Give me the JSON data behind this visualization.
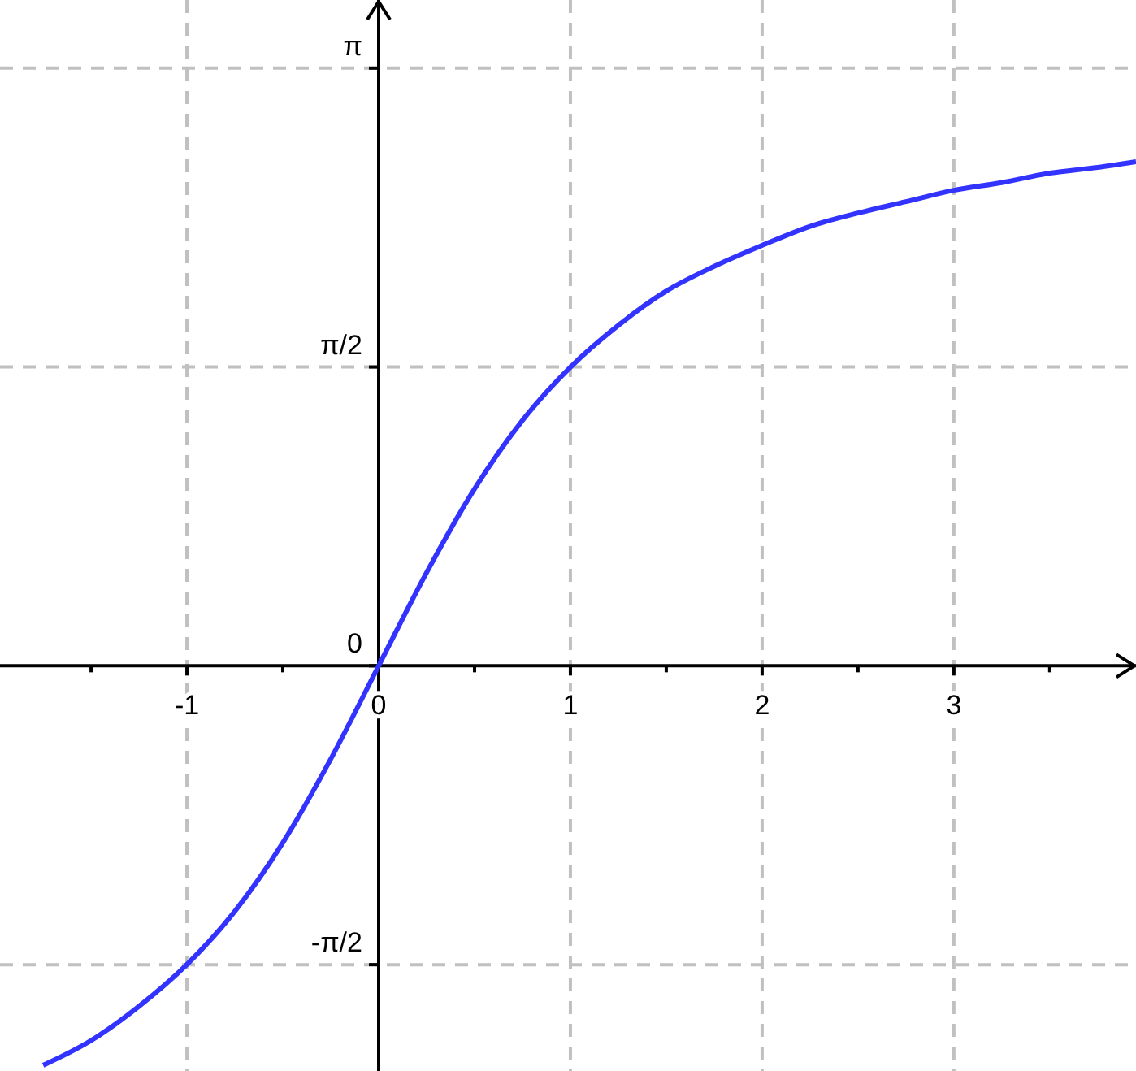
{
  "chart_data": {
    "type": "line",
    "xlim": [
      -1.975,
      3.95
    ],
    "ylim": [
      -2.13,
      3.5
    ],
    "xticks": [
      -1,
      {
        "value": -1.5,
        "label": null
      },
      {
        "value": -0.5,
        "label": null
      },
      0,
      {
        "value": 0.5,
        "label": null
      },
      1,
      {
        "value": 1.5,
        "label": null
      },
      2,
      {
        "value": 2.5,
        "label": null
      },
      3,
      {
        "value": 3.5,
        "label": null
      }
    ],
    "yticks": [
      {
        "value": -1.571,
        "label": "-π/2"
      },
      0,
      {
        "value": 1.571,
        "label": "π/2"
      },
      {
        "value": 3.142,
        "label": "π"
      }
    ],
    "grid": true,
    "line_style": "dashed",
    "series": [
      {
        "color": "#3333ff",
        "line_style": "solid",
        "x": [
          -1.75,
          -1.5,
          -1.25,
          -1,
          -0.75,
          -0.5,
          -0.25,
          0,
          0.25,
          0.5,
          0.75,
          1,
          1.25,
          1.5,
          1.75,
          2,
          2.25,
          2.5,
          2.75,
          3,
          3.25,
          3.5,
          3.75,
          3.95
        ],
        "values": [
          -2.1,
          -1.97,
          -1.79,
          -1.57,
          -1.29,
          -0.93,
          -0.49,
          0,
          0.49,
          0.93,
          1.29,
          1.57,
          1.79,
          1.97,
          2.1,
          2.21,
          2.31,
          2.38,
          2.44,
          2.5,
          2.54,
          2.59,
          2.62,
          2.65
        ]
      }
    ]
  }
}
